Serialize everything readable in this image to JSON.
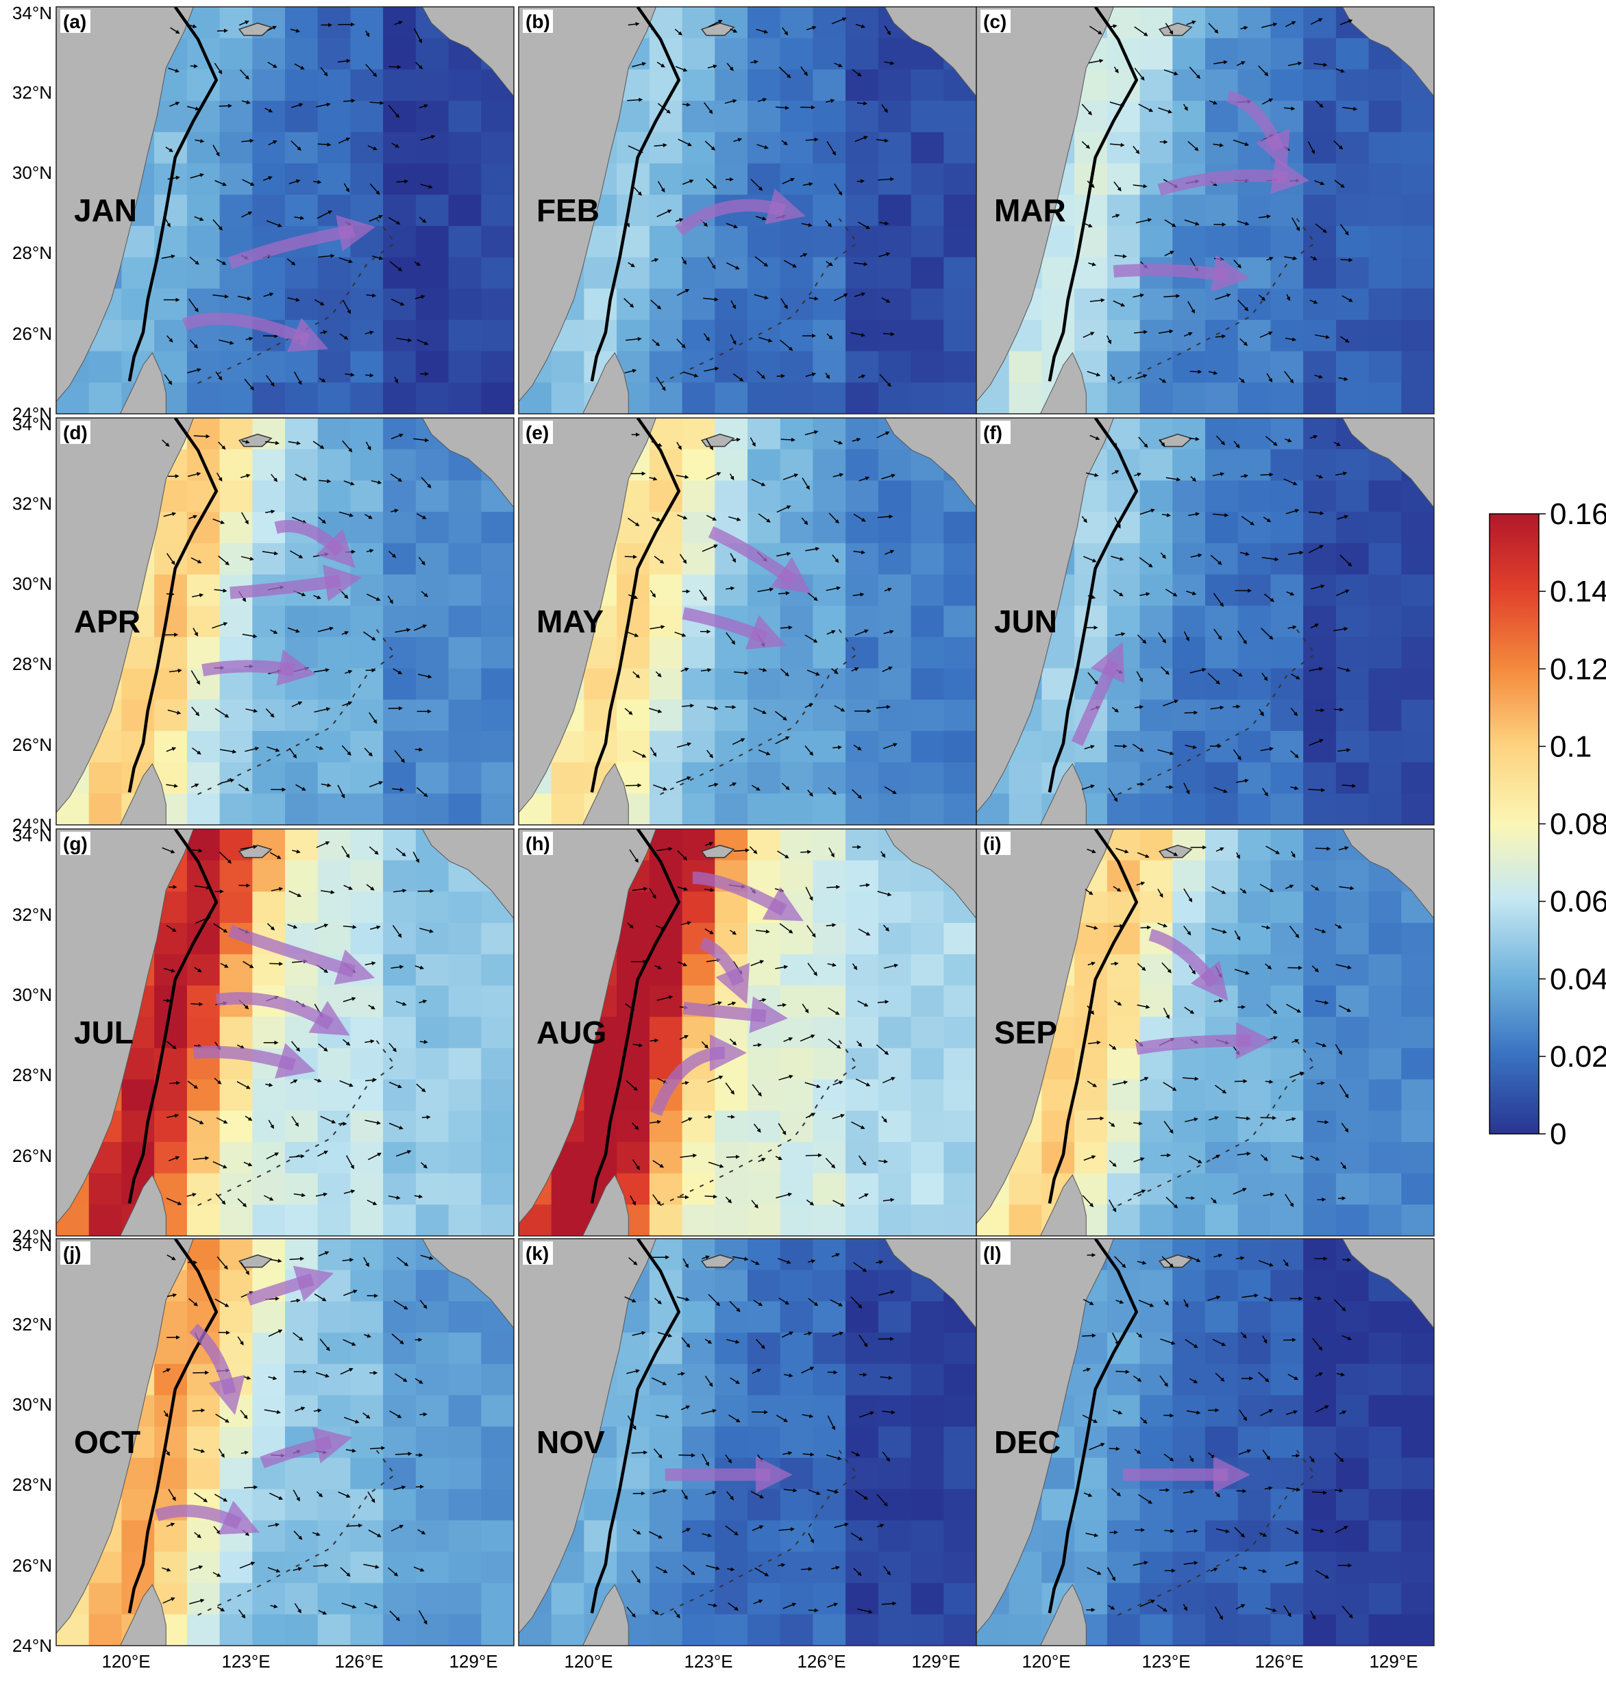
{
  "figure": {
    "latitude_ticks": [
      "34°N",
      "32°N",
      "30°N",
      "28°N",
      "26°N",
      "24°N"
    ],
    "longitude_ticks": [
      "120°E",
      "123°E",
      "126°E",
      "129°E"
    ],
    "panels": [
      {
        "id": "a",
        "letter": "(a)",
        "month": "JAN",
        "level": 0.03
      },
      {
        "id": "b",
        "letter": "(b)",
        "month": "FEB",
        "level": 0.035
      },
      {
        "id": "c",
        "letter": "(c)",
        "month": "MAR",
        "level": 0.045
      },
      {
        "id": "d",
        "letter": "(d)",
        "month": "APR",
        "level": 0.07
      },
      {
        "id": "e",
        "letter": "(e)",
        "month": "MAY",
        "level": 0.065
      },
      {
        "id": "f",
        "letter": "(f)",
        "month": "JUN",
        "level": 0.035
      },
      {
        "id": "g",
        "letter": "(g)",
        "month": "JUL",
        "level": 0.11
      },
      {
        "id": "h",
        "letter": "(h)",
        "month": "AUG",
        "level": 0.12
      },
      {
        "id": "i",
        "letter": "(i)",
        "month": "SEP",
        "level": 0.07
      },
      {
        "id": "j",
        "letter": "(j)",
        "month": "OCT",
        "level": 0.08
      },
      {
        "id": "k",
        "letter": "(k)",
        "month": "NOV",
        "level": 0.03
      },
      {
        "id": "l",
        "letter": "(l)",
        "month": "DEC",
        "level": 0.025
      }
    ]
  },
  "colorbar": {
    "min": 0,
    "max": 0.16,
    "ticks": [
      "0.16",
      "0.14",
      "0.12",
      "0.1",
      "0.08",
      "0.06",
      "0.04",
      "0.02",
      "0"
    ],
    "colors": [
      "#b2182b",
      "#e0402b",
      "#f48a3c",
      "#fdd17e",
      "#fbf6b4",
      "#c6e8f2",
      "#6fb2dc",
      "#3a73c2",
      "#283593"
    ]
  },
  "colors": {
    "land": "#b4b4b4",
    "coastline": "#000000",
    "flow_arrow": "#a46bc4"
  }
}
